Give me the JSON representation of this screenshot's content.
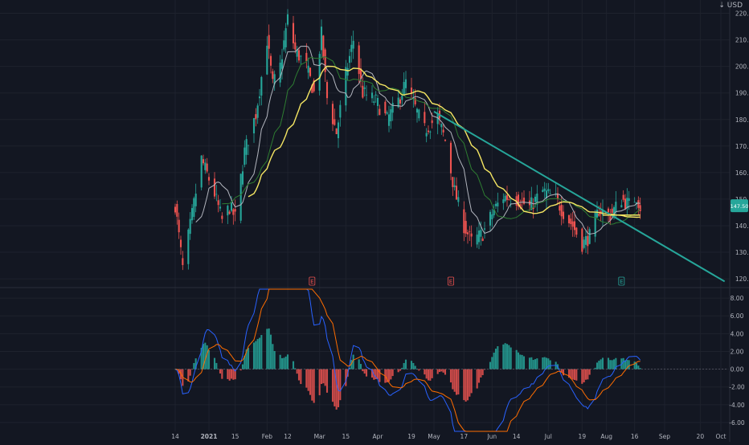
{
  "colors": {
    "background": "#131722",
    "grid": "#1e222d",
    "axis_text": "#b2b5be",
    "candle_up": "#26a69a",
    "candle_down": "#ef5350",
    "ma_fast": "#b2b5be",
    "ma_mid": "#2e7d32",
    "ma_slow": "#f5e663",
    "trendline": "#26a69a",
    "macd_line": "#2962ff",
    "signal_line": "#ff6d00",
    "hist_up": "#26a69a",
    "hist_down": "#ef5350",
    "price_badge": "#26a69a",
    "earnings_red": "#ef5350",
    "earnings_green": "#26a69a"
  },
  "header": {
    "currency_label": "USD"
  },
  "earnings_markers": [
    {
      "label": "E",
      "date": "2021-02-25",
      "color": "red"
    },
    {
      "label": "E",
      "date": "2021-05-10",
      "color": "red"
    },
    {
      "label": "E",
      "date": "2021-08-09",
      "color": "green"
    }
  ],
  "current_price": {
    "value": 147.5,
    "label": "147.50"
  },
  "chart_data": [
    {
      "type": "candlestick",
      "x_ticks": [
        "14",
        "2021",
        "15",
        "Feb",
        "12",
        "Mar",
        "15",
        "Apr",
        "19",
        "May",
        "17",
        "Jun",
        "14",
        "Jul",
        "19",
        "Aug",
        "16",
        "Sep",
        "20",
        "Oct"
      ],
      "y_ticks": [
        "120.00",
        "130.00",
        "140.00",
        "150.00",
        "160.00",
        "170.00",
        "180.00",
        "190.00",
        "200.00",
        "210.00",
        "220.00"
      ],
      "ylim": [
        117,
        225
      ],
      "close_keyframes": [
        [
          "2020-12-14",
          148
        ],
        [
          "2020-12-16",
          136
        ],
        [
          "2020-12-18",
          124
        ],
        [
          "2020-12-22",
          140
        ],
        [
          "2020-12-28",
          165
        ],
        [
          "2021-01-04",
          152
        ],
        [
          "2021-01-08",
          142
        ],
        [
          "2021-01-12",
          147
        ],
        [
          "2021-01-15",
          143
        ],
        [
          "2021-01-20",
          168
        ],
        [
          "2021-01-26",
          182
        ],
        [
          "2021-02-01",
          210
        ],
        [
          "2021-02-04",
          193
        ],
        [
          "2021-02-08",
          200
        ],
        [
          "2021-02-12",
          218
        ],
        [
          "2021-02-16",
          206
        ],
        [
          "2021-02-22",
          200
        ],
        [
          "2021-02-26",
          190
        ],
        [
          "2021-03-02",
          212
        ],
        [
          "2021-03-05",
          188
        ],
        [
          "2021-03-10",
          175
        ],
        [
          "2021-03-15",
          197
        ],
        [
          "2021-03-19",
          210
        ],
        [
          "2021-03-24",
          190
        ],
        [
          "2021-03-31",
          187
        ],
        [
          "2021-04-06",
          180
        ],
        [
          "2021-04-12",
          187
        ],
        [
          "2021-04-16",
          194
        ],
        [
          "2021-04-20",
          186
        ],
        [
          "2021-04-26",
          176
        ],
        [
          "2021-05-03",
          181
        ],
        [
          "2021-05-07",
          172
        ],
        [
          "2021-05-12",
          153
        ],
        [
          "2021-05-17",
          140
        ],
        [
          "2021-05-21",
          134
        ],
        [
          "2021-05-27",
          137
        ],
        [
          "2021-06-02",
          146
        ],
        [
          "2021-06-07",
          151
        ],
        [
          "2021-06-14",
          150
        ],
        [
          "2021-06-21",
          147
        ],
        [
          "2021-06-28",
          153
        ],
        [
          "2021-07-05",
          150
        ],
        [
          "2021-07-09",
          145
        ],
        [
          "2021-07-14",
          140
        ],
        [
          "2021-07-19",
          133
        ],
        [
          "2021-07-23",
          136
        ],
        [
          "2021-07-28",
          146
        ],
        [
          "2021-08-03",
          144
        ],
        [
          "2021-08-09",
          150
        ],
        [
          "2021-08-13",
          148
        ],
        [
          "2021-08-17",
          151
        ],
        [
          "2021-08-19",
          147
        ]
      ],
      "series": [
        {
          "name": "",
          "kind": "sma_fast",
          "period": 10
        },
        {
          "name": "",
          "kind": "sma_mid",
          "period": 20
        },
        {
          "name": "",
          "kind": "sma_slow",
          "period": 30
        }
      ],
      "trendline": {
        "start": [
          "2021-05-01",
          183
        ],
        "end": [
          "2021-10-03",
          119
        ]
      },
      "horizontal_line": {
        "start": [
          "2021-07-30",
          144
        ],
        "end": [
          "2021-08-19",
          144
        ]
      }
    },
    {
      "type": "macd",
      "y_ticks": [
        "-6.00",
        "-4.00",
        "-2.00",
        "0.00",
        "2.00",
        "4.00",
        "6.00",
        "8.00"
      ],
      "ylim": [
        -7,
        9
      ],
      "series": [
        {
          "name": "",
          "kind": "macd"
        },
        {
          "name": "",
          "kind": "signal"
        },
        {
          "name": "",
          "kind": "histogram"
        }
      ]
    }
  ]
}
